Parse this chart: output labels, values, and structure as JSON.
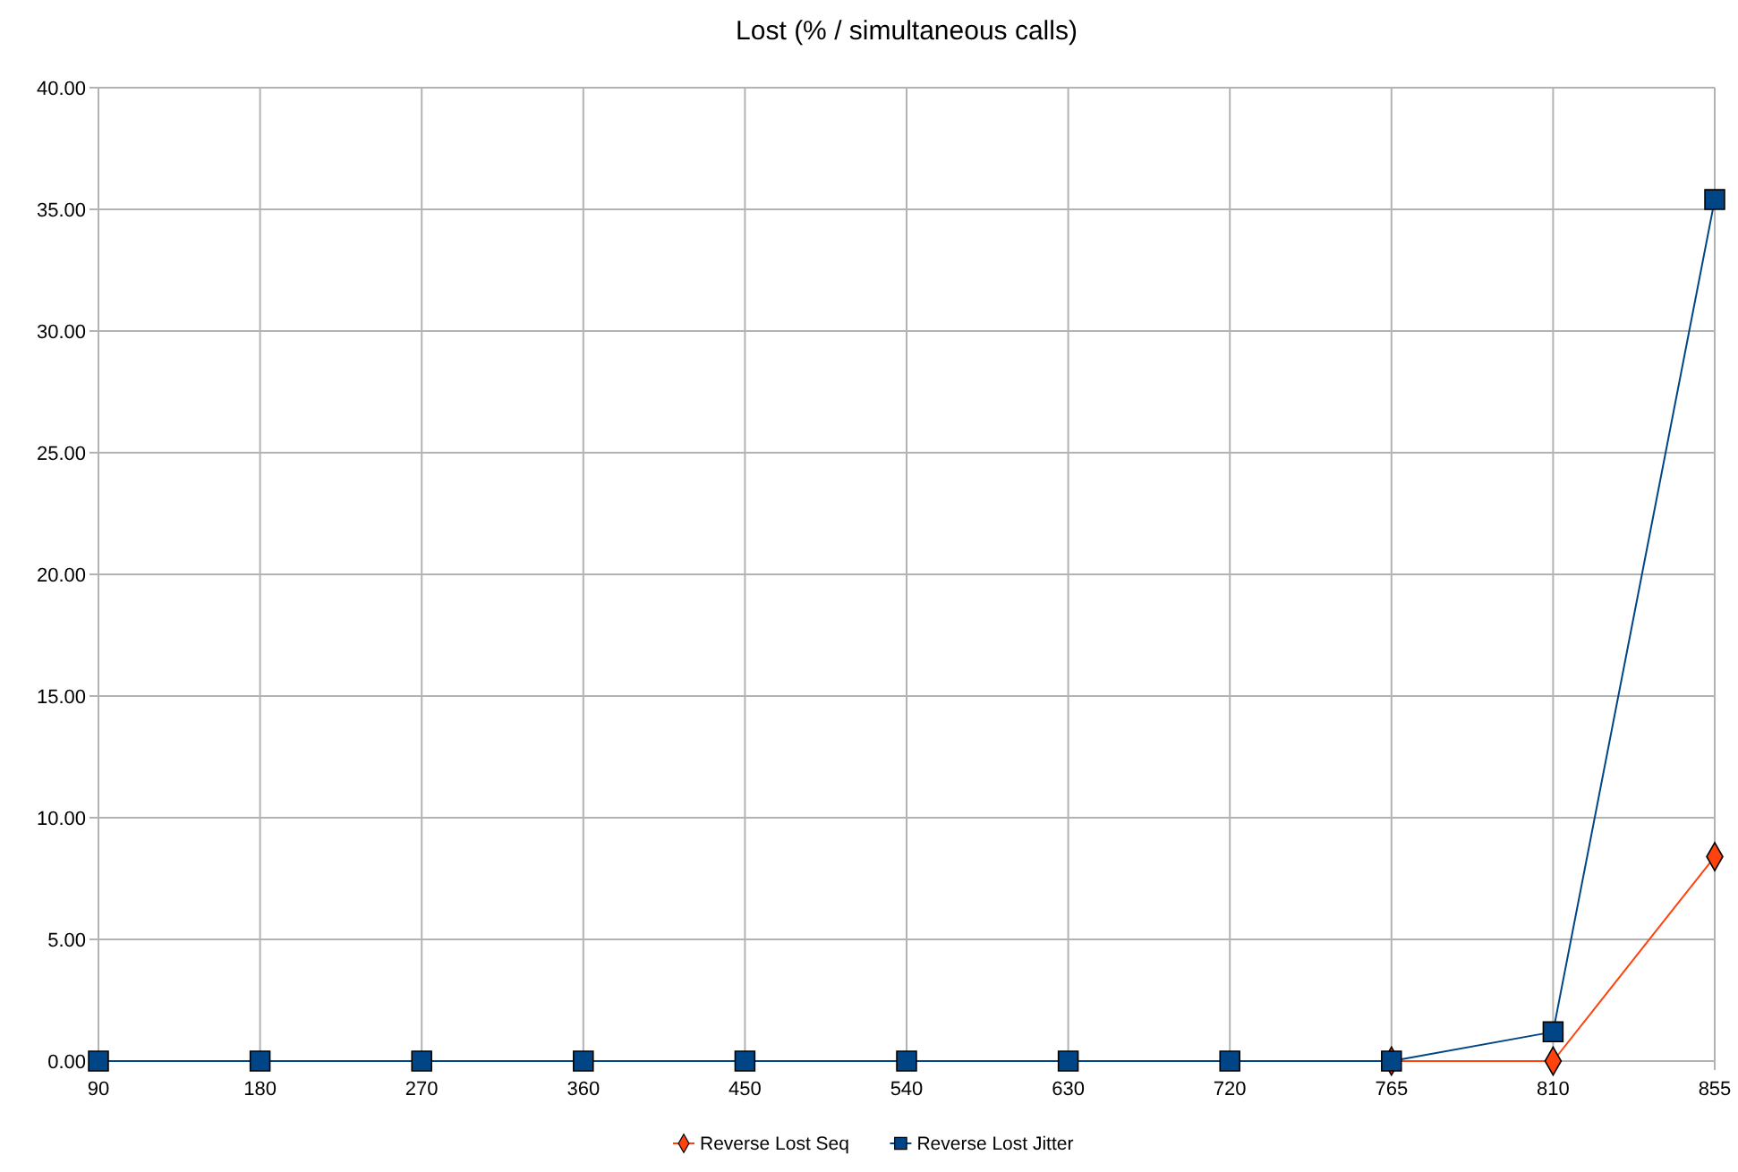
{
  "chart_data": {
    "type": "line",
    "title": "Lost (% / simultaneous calls)",
    "categories": [
      "90",
      "180",
      "270",
      "360",
      "450",
      "540",
      "630",
      "720",
      "765",
      "810",
      "855"
    ],
    "series": [
      {
        "name": "Reverse Lost Seq",
        "color": "#ff420e",
        "marker": "diamond",
        "values": [
          null,
          null,
          null,
          null,
          null,
          null,
          null,
          null,
          0,
          0,
          8.4
        ]
      },
      {
        "name": "Reverse Lost Jitter",
        "color": "#004586",
        "marker": "square",
        "values": [
          0,
          0,
          0,
          0,
          0,
          0,
          0,
          0,
          0,
          1.2,
          35.4
        ]
      }
    ],
    "ylim": [
      0,
      40
    ],
    "yticks": [
      {
        "value": 0,
        "label": "0.00"
      },
      {
        "value": 5,
        "label": "5.00"
      },
      {
        "value": 10,
        "label": "10.00"
      },
      {
        "value": 15,
        "label": "15.00"
      },
      {
        "value": 20,
        "label": "20.00"
      },
      {
        "value": 25,
        "label": "25.00"
      },
      {
        "value": 30,
        "label": "30.00"
      },
      {
        "value": 35,
        "label": "35.00"
      },
      {
        "value": 40,
        "label": "40.00"
      }
    ],
    "grid": true,
    "legend": "bottom"
  }
}
